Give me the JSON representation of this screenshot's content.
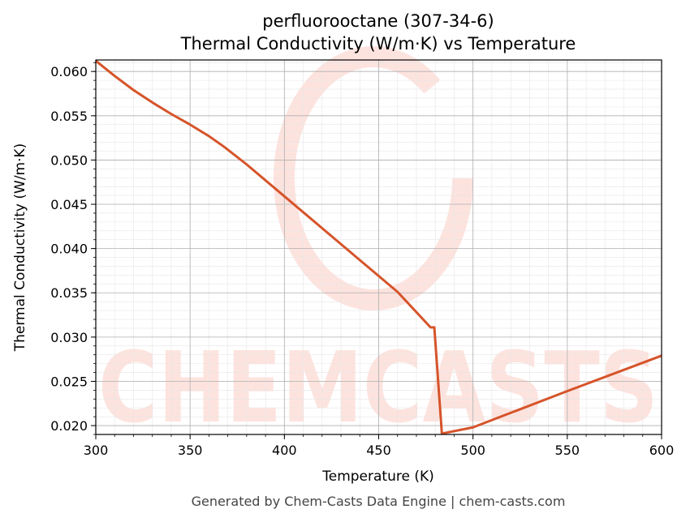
{
  "chart_data": {
    "type": "line",
    "title": "perfluorooctane (307-34-6)",
    "subtitle": "Thermal Conductivity (W/m·K) vs Temperature",
    "xlabel": "Temperature (K)",
    "ylabel": "Thermal Conductivity (W/m·K)",
    "xlim": [
      300,
      600
    ],
    "ylim": [
      0.019,
      0.0613
    ],
    "xticks": [
      300,
      350,
      400,
      450,
      500,
      550,
      600
    ],
    "yticks": [
      0.02,
      0.025,
      0.03,
      0.035,
      0.04,
      0.045,
      0.05,
      0.055,
      0.06
    ],
    "xtick_labels": [
      "300",
      "350",
      "400",
      "450",
      "500",
      "550",
      "600"
    ],
    "ytick_labels": [
      "0.020",
      "0.025",
      "0.030",
      "0.035",
      "0.040",
      "0.045",
      "0.050",
      "0.055",
      "0.060"
    ],
    "grid": true,
    "line_color": "#d6542a",
    "series": [
      {
        "x": [
          300,
          310,
          320,
          330,
          340,
          350,
          360,
          368,
          380,
          400,
          420,
          440,
          460,
          477.5,
          479.5,
          483.5,
          500,
          550,
          600
        ],
        "y": [
          0.0612,
          0.0595,
          0.0579,
          0.0565,
          0.0552,
          0.054,
          0.0527,
          0.0515,
          0.0495,
          0.0459,
          0.0423,
          0.0387,
          0.0351,
          0.0311,
          0.0311,
          0.0191,
          0.0198,
          0.0239,
          0.0279
        ]
      }
    ]
  },
  "watermark": {
    "text": "CHEMCASTS",
    "color": "#fde3de"
  },
  "footer": "Generated by Chem-Casts Data Engine | chem-casts.com"
}
